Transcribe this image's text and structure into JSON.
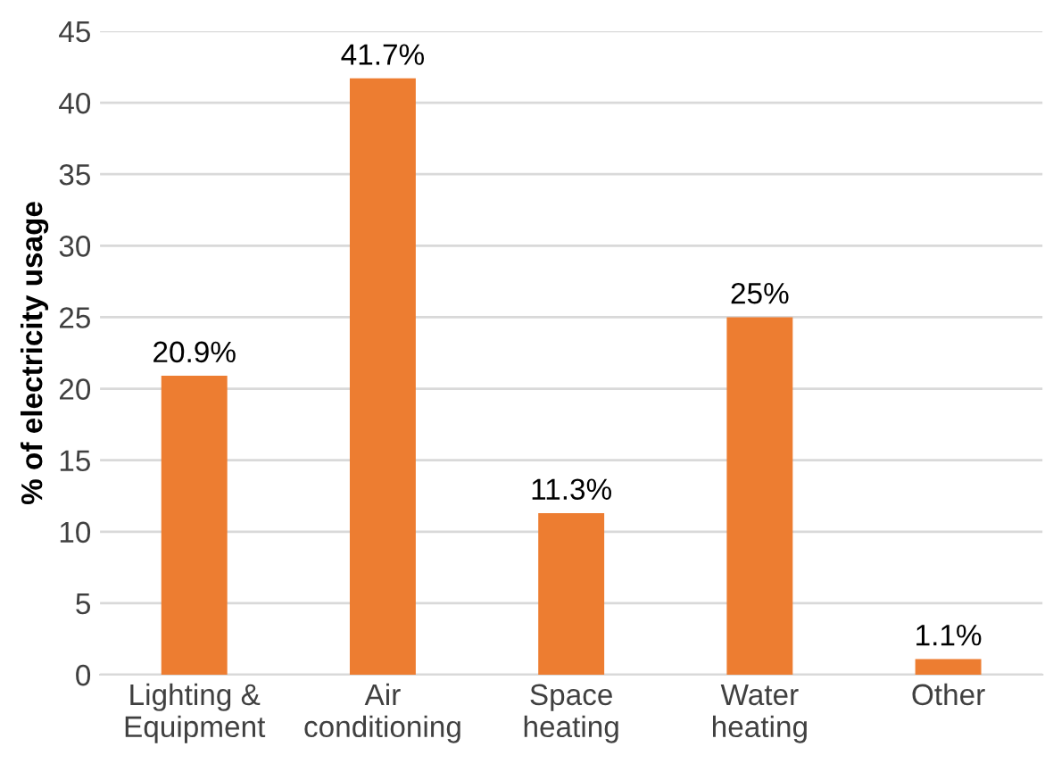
{
  "chart_data": {
    "type": "bar",
    "ylabel": "% of electricity usage",
    "categories": [
      "Lighting &\nEquipment",
      "Air\nconditioning",
      "Space\nheating",
      "Water\nheating",
      "Other"
    ],
    "values": [
      20.9,
      41.7,
      11.3,
      25,
      1.1
    ],
    "value_labels": [
      "20.9%",
      "41.7%",
      "11.3%",
      "25%",
      "1.1%"
    ],
    "color": "#ed7d31",
    "ylim": [
      0,
      45
    ],
    "yticks": [
      0,
      5,
      10,
      15,
      20,
      25,
      30,
      35,
      40,
      45
    ],
    "grid": "y"
  }
}
